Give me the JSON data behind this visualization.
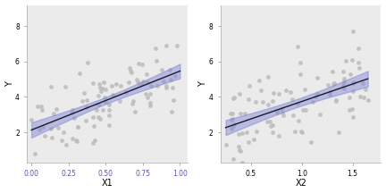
{
  "seed": 7,
  "n_points": 100,
  "bg_color": "#FFFFFF",
  "panel_bg": "#EBEBEB",
  "scatter_color": "#BEBEBE",
  "line_color": "#1a1a2e",
  "band_color": "#7B7FD4",
  "band_alpha": 0.45,
  "scatter_alpha": 0.9,
  "scatter_size": 12,
  "panel1": {
    "xlabel": "X1",
    "ylabel": "Y",
    "xlim": [
      -0.03,
      1.05
    ],
    "ylim": [
      0.3,
      9.2
    ],
    "xticks": [
      0.0,
      0.25,
      0.5,
      0.75,
      1.0
    ],
    "xtick_labels": [
      "0.00",
      "0.25",
      "0.50",
      "0.75",
      "1.00"
    ],
    "yticks": [
      2,
      4,
      6,
      8
    ],
    "x_min": 0.0,
    "x_max": 1.0,
    "intercept": 2.3,
    "slope": 3.0,
    "noise_sd": 1.1
  },
  "panel2": {
    "xlabel": "X2",
    "ylabel": "Y",
    "xlim": [
      0.2,
      1.78
    ],
    "ylim": [
      0.3,
      9.2
    ],
    "xticks": [
      0.5,
      1.0,
      1.5
    ],
    "xtick_labels": [
      "0.5",
      "1.0",
      "1.5"
    ],
    "yticks": [
      2,
      4,
      6,
      8
    ],
    "x_min": 0.25,
    "x_max": 1.65,
    "intercept": 1.8,
    "slope": 2.0,
    "noise_sd": 1.1
  }
}
